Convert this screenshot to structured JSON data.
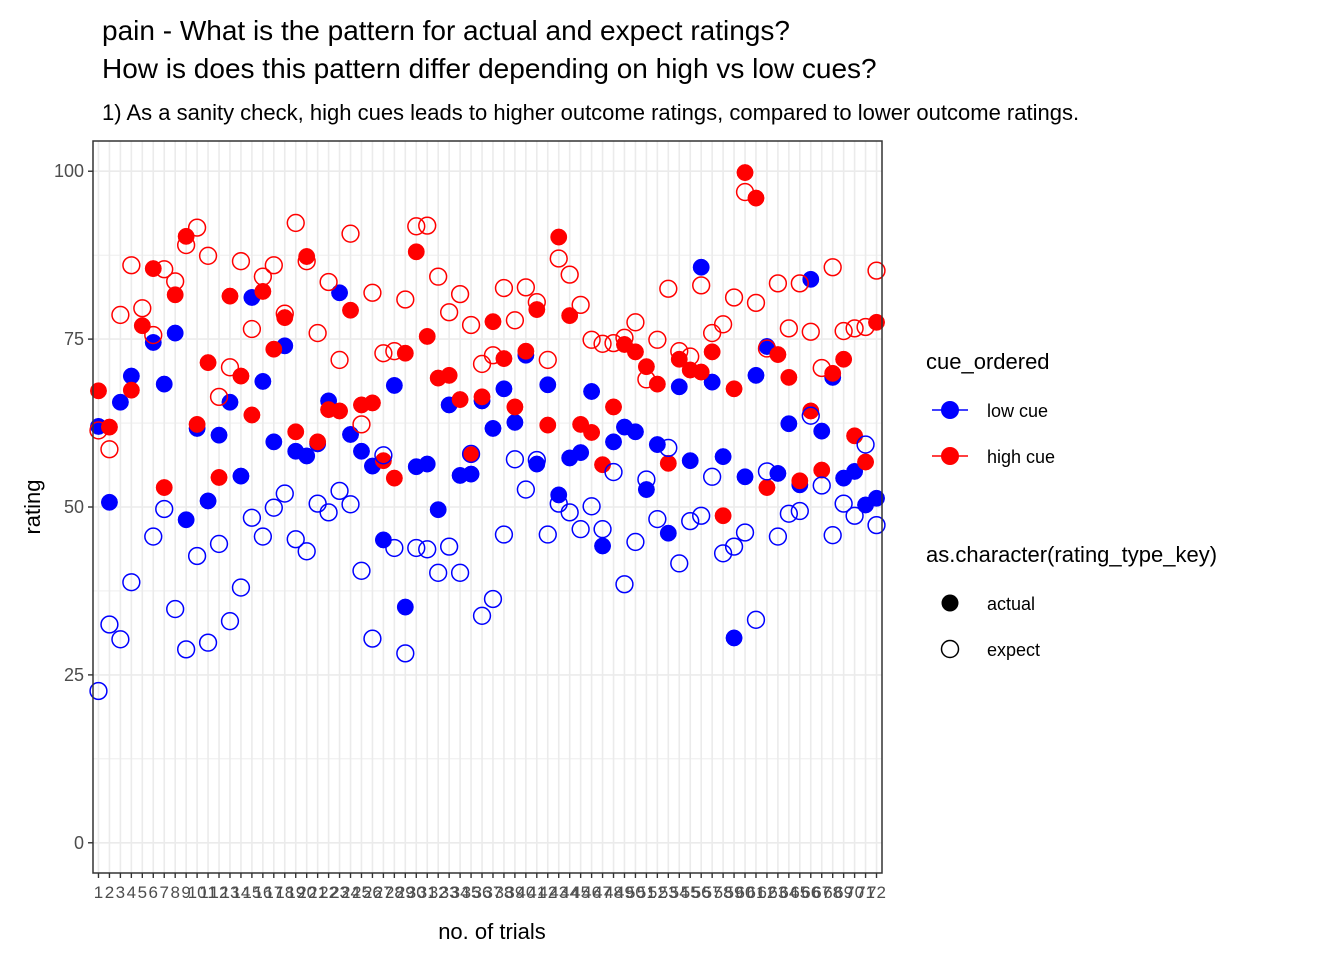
{
  "chart_data": {
    "type": "scatter",
    "title_lines": [
      "pain - What is the pattern for actual and expect ratings?",
      "How is does this pattern differ depending on high vs low cues?"
    ],
    "subtitle": "1) As a sanity check, high cues leads to higher outcome ratings, compared to lower outcome ratings.",
    "xlabel": "no. of trials",
    "ylabel": "rating",
    "ylim": [
      -4.5,
      104.5
    ],
    "yticks": [
      0,
      25,
      50,
      75,
      100
    ],
    "xlim": [
      0.5,
      72.5
    ],
    "x_ticks": [
      1,
      2,
      3,
      4,
      5,
      6,
      7,
      8,
      9,
      10,
      11,
      12,
      13,
      14,
      15,
      16,
      17,
      18,
      19,
      20,
      21,
      22,
      23,
      24,
      25,
      26,
      27,
      28,
      29,
      30,
      31,
      32,
      33,
      34,
      35,
      36,
      37,
      38,
      39,
      40,
      41,
      42,
      43,
      44,
      45,
      46,
      47,
      48,
      49,
      50,
      51,
      52,
      53,
      54,
      55,
      56,
      57,
      58,
      59,
      60,
      61,
      62,
      63,
      64,
      65,
      66,
      67,
      68,
      69,
      70,
      71,
      72
    ],
    "grid": true,
    "legend_position": "right",
    "colors": {
      "low cue": "#0000ff",
      "high cue": "#ff0000"
    },
    "legend": {
      "cue_title": "cue_ordered",
      "cue_items": [
        "low cue",
        "high cue"
      ],
      "type_title": "as.character(rating_type_key)",
      "type_items": [
        "actual",
        "expect"
      ]
    },
    "series": [
      {
        "cue": "low cue",
        "type": "actual",
        "color": "#0000ff",
        "points": [
          [
            1,
            62
          ],
          [
            2,
            50.7
          ],
          [
            3,
            65.6
          ],
          [
            4,
            69.5
          ],
          [
            6,
            74.5
          ],
          [
            7,
            68.3
          ],
          [
            8,
            75.9
          ],
          [
            9,
            48.1
          ],
          [
            10,
            61.7
          ],
          [
            11,
            50.9
          ],
          [
            12,
            60.7
          ],
          [
            13,
            65.6
          ],
          [
            14,
            54.6
          ],
          [
            15,
            81.2
          ],
          [
            16,
            68.7
          ],
          [
            17,
            59.7
          ],
          [
            18,
            74.0
          ],
          [
            19,
            58.3
          ],
          [
            20,
            57.6
          ],
          [
            21,
            59.4
          ],
          [
            22,
            65.8
          ],
          [
            23,
            81.9
          ],
          [
            24,
            60.8
          ],
          [
            25,
            58.3
          ],
          [
            26,
            56.1
          ],
          [
            27,
            45.1
          ],
          [
            28,
            68.1
          ],
          [
            29,
            35.1
          ],
          [
            30,
            56.0
          ],
          [
            31,
            56.4
          ],
          [
            32,
            49.6
          ],
          [
            33,
            65.2
          ],
          [
            34,
            54.7
          ],
          [
            35,
            54.9
          ],
          [
            36,
            65.8
          ],
          [
            37,
            61.7
          ],
          [
            38,
            67.6
          ],
          [
            39,
            62.6
          ],
          [
            40,
            72.6
          ],
          [
            41,
            56.4
          ],
          [
            42,
            68.2
          ],
          [
            43,
            51.8
          ],
          [
            44,
            57.3
          ],
          [
            45,
            58.1
          ],
          [
            46,
            67.2
          ],
          [
            47,
            44.2
          ],
          [
            48,
            59.7
          ],
          [
            49,
            61.9
          ],
          [
            50,
            61.2
          ],
          [
            51,
            52.6
          ],
          [
            52,
            59.3
          ],
          [
            53,
            46.1
          ],
          [
            54,
            67.9
          ],
          [
            55,
            56.9
          ],
          [
            56,
            85.7
          ],
          [
            57,
            68.6
          ],
          [
            58,
            57.5
          ],
          [
            59,
            30.5
          ],
          [
            60,
            54.5
          ],
          [
            61,
            69.6
          ],
          [
            62,
            73.9
          ],
          [
            63,
            55.0
          ],
          [
            64,
            62.4
          ],
          [
            65,
            53.3
          ],
          [
            66,
            83.9
          ],
          [
            67,
            61.3
          ],
          [
            68,
            69.3
          ],
          [
            69,
            54.3
          ],
          [
            70,
            55.3
          ],
          [
            71,
            50.3
          ],
          [
            72,
            51.3
          ]
        ]
      },
      {
        "cue": "high cue",
        "type": "actual",
        "color": "#ff0000",
        "points": [
          [
            1,
            67.3
          ],
          [
            2,
            61.9
          ],
          [
            4,
            67.4
          ],
          [
            5,
            77.0
          ],
          [
            6,
            85.5
          ],
          [
            7,
            52.9
          ],
          [
            8,
            81.6
          ],
          [
            9,
            90.3
          ],
          [
            10,
            62.3
          ],
          [
            11,
            71.5
          ],
          [
            12,
            54.4
          ],
          [
            13,
            81.4
          ],
          [
            14,
            69.5
          ],
          [
            15,
            63.7
          ],
          [
            16,
            82.1
          ],
          [
            17,
            73.5
          ],
          [
            18,
            78.2
          ],
          [
            19,
            61.2
          ],
          [
            20,
            87.3
          ],
          [
            21,
            59.7
          ],
          [
            22,
            64.5
          ],
          [
            23,
            64.3
          ],
          [
            24,
            79.3
          ],
          [
            25,
            65.2
          ],
          [
            26,
            65.5
          ],
          [
            27,
            56.9
          ],
          [
            28,
            54.3
          ],
          [
            29,
            72.9
          ],
          [
            30,
            88.0
          ],
          [
            31,
            75.4
          ],
          [
            32,
            69.2
          ],
          [
            33,
            69.6
          ],
          [
            34,
            66.0
          ],
          [
            35,
            57.8
          ],
          [
            36,
            66.4
          ],
          [
            37,
            77.6
          ],
          [
            38,
            72.1
          ],
          [
            39,
            64.9
          ],
          [
            40,
            73.2
          ],
          [
            41,
            79.4
          ],
          [
            42,
            62.2
          ],
          [
            43,
            90.2
          ],
          [
            44,
            78.5
          ],
          [
            45,
            62.3
          ],
          [
            46,
            61.1
          ],
          [
            47,
            56.3
          ],
          [
            48,
            64.9
          ],
          [
            49,
            74.2
          ],
          [
            50,
            73.1
          ],
          [
            51,
            70.9
          ],
          [
            52,
            68.3
          ],
          [
            53,
            56.5
          ],
          [
            54,
            72.0
          ],
          [
            55,
            70.4
          ],
          [
            56,
            70.1
          ],
          [
            57,
            73.1
          ],
          [
            58,
            48.7
          ],
          [
            59,
            67.6
          ],
          [
            60,
            99.8
          ],
          [
            61,
            96.0
          ],
          [
            62,
            52.9
          ],
          [
            63,
            72.7
          ],
          [
            64,
            69.3
          ],
          [
            65,
            53.9
          ],
          [
            66,
            64.3
          ],
          [
            67,
            55.5
          ],
          [
            68,
            69.9
          ],
          [
            69,
            72.0
          ],
          [
            70,
            60.6
          ],
          [
            71,
            56.7
          ],
          [
            72,
            77.5
          ]
        ]
      },
      {
        "cue": "low cue",
        "type": "expect",
        "color": "#0000ff",
        "points": [
          [
            1,
            22.6
          ],
          [
            2,
            32.5
          ],
          [
            3,
            30.3
          ],
          [
            4,
            38.8
          ],
          [
            6,
            45.6
          ],
          [
            7,
            49.7
          ],
          [
            8,
            34.8
          ],
          [
            9,
            28.8
          ],
          [
            10,
            42.7
          ],
          [
            11,
            29.8
          ],
          [
            12,
            44.5
          ],
          [
            13,
            33.0
          ],
          [
            14,
            38.0
          ],
          [
            15,
            48.4
          ],
          [
            16,
            45.6
          ],
          [
            17,
            49.9
          ],
          [
            18,
            52.0
          ],
          [
            19,
            45.2
          ],
          [
            20,
            43.4
          ],
          [
            21,
            50.5
          ],
          [
            22,
            49.2
          ],
          [
            23,
            52.4
          ],
          [
            24,
            50.4
          ],
          [
            25,
            40.5
          ],
          [
            26,
            30.4
          ],
          [
            27,
            57.7
          ],
          [
            28,
            43.9
          ],
          [
            29,
            28.2
          ],
          [
            30,
            43.9
          ],
          [
            31,
            43.7
          ],
          [
            32,
            40.2
          ],
          [
            33,
            44.1
          ],
          [
            34,
            40.2
          ],
          [
            35,
            57.9
          ],
          [
            36,
            33.8
          ],
          [
            37,
            36.3
          ],
          [
            38,
            45.9
          ],
          [
            39,
            57.1
          ],
          [
            40,
            52.6
          ],
          [
            41,
            57.0
          ],
          [
            42,
            45.9
          ],
          [
            43,
            50.5
          ],
          [
            44,
            49.2
          ],
          [
            45,
            46.7
          ],
          [
            46,
            50.1
          ],
          [
            47,
            46.7
          ],
          [
            48,
            55.2
          ],
          [
            49,
            38.5
          ],
          [
            50,
            44.8
          ],
          [
            51,
            54.1
          ],
          [
            52,
            48.2
          ],
          [
            53,
            58.8
          ],
          [
            54,
            41.6
          ],
          [
            55,
            47.9
          ],
          [
            56,
            48.7
          ],
          [
            57,
            54.5
          ],
          [
            58,
            43.1
          ],
          [
            59,
            44.1
          ],
          [
            60,
            46.2
          ],
          [
            61,
            33.2
          ],
          [
            62,
            55.3
          ],
          [
            63,
            45.6
          ],
          [
            64,
            49.0
          ],
          [
            65,
            49.4
          ],
          [
            66,
            63.6
          ],
          [
            67,
            53.2
          ],
          [
            68,
            45.8
          ],
          [
            69,
            50.5
          ],
          [
            70,
            48.7
          ],
          [
            71,
            59.3
          ],
          [
            72,
            47.3
          ]
        ]
      },
      {
        "cue": "high cue",
        "type": "expect",
        "color": "#ff0000",
        "points": [
          [
            1,
            61.4
          ],
          [
            2,
            58.6
          ],
          [
            3,
            78.6
          ],
          [
            4,
            86.0
          ],
          [
            5,
            79.6
          ],
          [
            6,
            75.6
          ],
          [
            7,
            85.4
          ],
          [
            8,
            83.6
          ],
          [
            9,
            89.0
          ],
          [
            10,
            91.6
          ],
          [
            11,
            87.4
          ],
          [
            12,
            66.4
          ],
          [
            13,
            70.8
          ],
          [
            14,
            86.6
          ],
          [
            15,
            76.5
          ],
          [
            16,
            84.3
          ],
          [
            17,
            86.0
          ],
          [
            18,
            78.8
          ],
          [
            19,
            92.3
          ],
          [
            20,
            86.6
          ],
          [
            21,
            75.9
          ],
          [
            22,
            83.5
          ],
          [
            23,
            71.9
          ],
          [
            24,
            90.7
          ],
          [
            25,
            62.3
          ],
          [
            26,
            81.9
          ],
          [
            27,
            72.9
          ],
          [
            28,
            73.2
          ],
          [
            29,
            80.9
          ],
          [
            30,
            91.8
          ],
          [
            31,
            91.9
          ],
          [
            32,
            84.3
          ],
          [
            33,
            79.0
          ],
          [
            34,
            81.7
          ],
          [
            35,
            77.1
          ],
          [
            36,
            71.3
          ],
          [
            37,
            72.6
          ],
          [
            38,
            82.6
          ],
          [
            39,
            77.8
          ],
          [
            40,
            82.7
          ],
          [
            41,
            80.5
          ],
          [
            42,
            71.9
          ],
          [
            43,
            87.0
          ],
          [
            44,
            84.6
          ],
          [
            45,
            80.1
          ],
          [
            46,
            74.9
          ],
          [
            47,
            74.3
          ],
          [
            48,
            74.4
          ],
          [
            49,
            75.2
          ],
          [
            50,
            77.5
          ],
          [
            51,
            69.0
          ],
          [
            52,
            74.9
          ],
          [
            53,
            82.5
          ],
          [
            54,
            73.2
          ],
          [
            55,
            72.4
          ],
          [
            56,
            83.0
          ],
          [
            57,
            75.9
          ],
          [
            58,
            77.2
          ],
          [
            59,
            81.2
          ],
          [
            60,
            96.9
          ],
          [
            61,
            80.4
          ],
          [
            62,
            73.6
          ],
          [
            63,
            83.3
          ],
          [
            64,
            76.6
          ],
          [
            65,
            83.3
          ],
          [
            66,
            76.1
          ],
          [
            67,
            70.7
          ],
          [
            68,
            85.7
          ],
          [
            69,
            76.2
          ],
          [
            70,
            76.6
          ],
          [
            71,
            76.8
          ],
          [
            72,
            85.2
          ]
        ]
      }
    ]
  }
}
